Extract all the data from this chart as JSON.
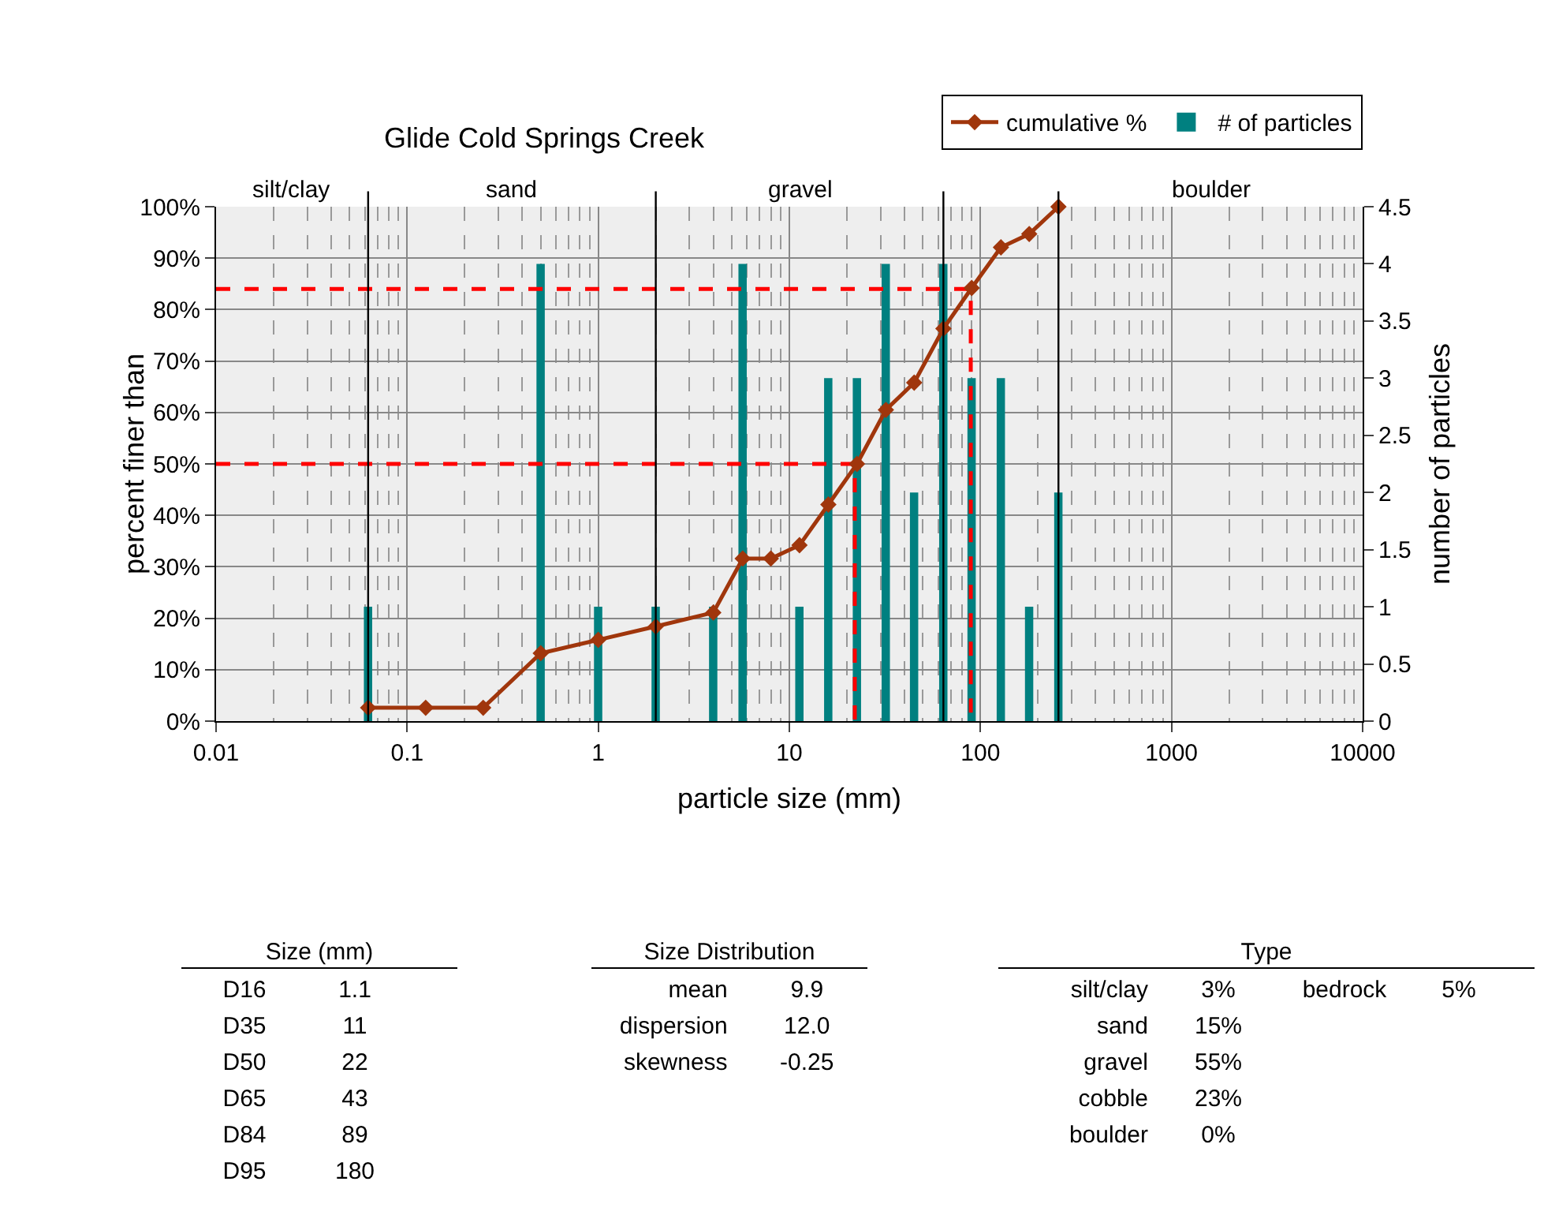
{
  "chart_data": {
    "type": "line",
    "title": "Glide Cold Springs Creek",
    "xlabel": "particle size (mm)",
    "ylabel": "percent finer than",
    "y2label": "number of particles",
    "log": "x",
    "grid": true,
    "legend": "top right",
    "xlim": [
      0.01,
      10000
    ],
    "xticks": [
      0.01,
      0.1,
      1,
      10,
      100,
      1000,
      10000
    ],
    "ylim": [
      0,
      100
    ],
    "yticks": [
      {
        "value": 0,
        "label": "0%"
      },
      {
        "value": 10,
        "label": "10%"
      },
      {
        "value": 20,
        "label": "20%"
      },
      {
        "value": 30,
        "label": "30%"
      },
      {
        "value": 40,
        "label": "40%"
      },
      {
        "value": 50,
        "label": "50%"
      },
      {
        "value": 60,
        "label": "60%"
      },
      {
        "value": 70,
        "label": "70%"
      },
      {
        "value": 80,
        "label": "80%"
      },
      {
        "value": 90,
        "label": "90%"
      },
      {
        "value": 100,
        "label": "100%"
      }
    ],
    "y2lim": [
      0,
      4.5
    ],
    "y2ticks": [
      0,
      0.5,
      1,
      1.5,
      2,
      2.5,
      3,
      3.5,
      4,
      4.5
    ],
    "x": [
      0.0625,
      0.125,
      0.25,
      0.5,
      1,
      2,
      4,
      5.7,
      8,
      11.3,
      16,
      22.6,
      32,
      45,
      64,
      90,
      128,
      180,
      256
    ],
    "series": [
      {
        "x": [
          0.01,
          89,
          89
        ],
        "values": [
          84,
          84,
          0
        ],
        "color": "#ff0000",
        "line_style": "dashed",
        "marker": "none"
      },
      {
        "x": [
          0.01,
          22,
          22
        ],
        "values": [
          50,
          50,
          0
        ],
        "color": "#ff0000",
        "line_style": "dashed",
        "marker": "none"
      },
      {
        "type": "bar",
        "name": "# of particles",
        "axis": "y2",
        "color": "#008080",
        "values": [
          1,
          0,
          0,
          4,
          1,
          1,
          1,
          4,
          0,
          1,
          3,
          3,
          4,
          2,
          4,
          3,
          3,
          1,
          2
        ]
      },
      {
        "name": "cumulative %",
        "color": "#a0360c",
        "marker": "diamond",
        "line_style": "solid",
        "values": [
          2.6,
          2.6,
          2.6,
          13.2,
          15.8,
          18.4,
          21.1,
          31.6,
          31.6,
          34.2,
          42.1,
          50,
          60.5,
          65.8,
          76.3,
          84.2,
          92.1,
          94.7,
          100
        ]
      }
    ],
    "ref_lines": [
      {
        "axis": "x",
        "value": 0.0625,
        "color": "#000000"
      },
      {
        "axis": "x",
        "value": 2,
        "color": "#000000"
      },
      {
        "axis": "x",
        "value": 64,
        "color": "#000000"
      },
      {
        "axis": "x",
        "value": 256,
        "color": "#000000"
      }
    ],
    "annotations": [
      "silt/clay",
      "sand",
      "gravel",
      "boulder",
      "Size (mm)",
      "D16\t1.1",
      "D35\t11",
      "D50\t22",
      "D65\t43",
      "D84\t89",
      "D95\t180",
      "Size Distribution",
      "mean\t9.9",
      "dispersion\t12.0",
      "skewness\t-0.25",
      "Type",
      "silt/clay\t3%\tbedrock\t5%",
      "sand\t15%",
      "gravel\t55%",
      "cobble\t23%",
      "boulder\t0%"
    ]
  }
}
